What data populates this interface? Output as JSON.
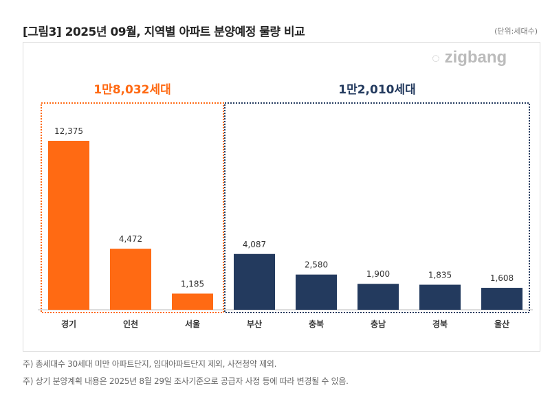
{
  "title": "[그림3] 2025년 09월, 지역별 아파트 분양예정 물량 비교",
  "unit": "(단위:세대수)",
  "logo": "zigbang",
  "notes": [
    "주) 총세대수 30세대 미만 아파트단지, 임대아파트단지 제외, 사전청약 제외.",
    "주) 상기 분양계획 내용은 2025년 8월 29일 조사기준으로 공급자 사정 등에 따라 변경될 수 있음."
  ],
  "chart_data": {
    "type": "bar",
    "categories": [
      "경기",
      "인천",
      "서울",
      "부산",
      "충북",
      "충남",
      "경북",
      "울산"
    ],
    "values": [
      12375,
      4472,
      1185,
      4087,
      2580,
      1900,
      1835,
      1608
    ],
    "data_labels": [
      "12,375",
      "4,472",
      "1,185",
      "4,087",
      "2,580",
      "1,900",
      "1,835",
      "1,608"
    ],
    "groups": [
      {
        "label": "1만8,032세대",
        "categories": [
          "경기",
          "인천",
          "서울"
        ],
        "color": "#ff6a13"
      },
      {
        "label": "1만2,010세대",
        "categories": [
          "부산",
          "충북",
          "충남",
          "경북",
          "울산"
        ],
        "color": "#233a5e"
      }
    ],
    "ylim": [
      0,
      12375
    ]
  }
}
